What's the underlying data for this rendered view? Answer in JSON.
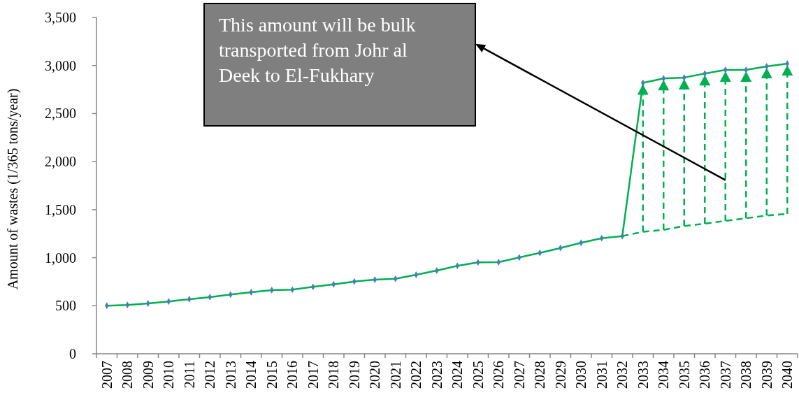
{
  "chart_data": {
    "type": "line",
    "ylabel": "Amount of wastes (1/365 tons/year)",
    "categories": [
      "2007",
      "2008",
      "2009",
      "2010",
      "2011",
      "2012",
      "2013",
      "2014",
      "2015",
      "2016",
      "2017",
      "2018",
      "2019",
      "2020",
      "2021",
      "2022",
      "2023",
      "2024",
      "2025",
      "2026",
      "2027",
      "2028",
      "2029",
      "2030",
      "2031",
      "2032",
      "2033",
      "2034",
      "2035",
      "2036",
      "2037",
      "2038",
      "2039",
      "2040"
    ],
    "series": [
      {
        "color": "#00b050",
        "values": [
          500,
          508,
          524,
          544,
          568,
          590,
          616,
          640,
          662,
          667,
          696,
          723,
          752,
          771,
          781,
          822,
          866,
          915,
          951,
          953,
          1002,
          1050,
          1101,
          1155,
          1203,
          1225,
          2819,
          2865,
          2875,
          2916,
          2955,
          2955,
          2991,
          3020
        ]
      },
      {
        "color": "#00b050",
        "line_style": "dashed",
        "marker": "none",
        "values": [
          null,
          null,
          null,
          null,
          null,
          null,
          null,
          null,
          null,
          null,
          null,
          null,
          null,
          null,
          null,
          null,
          null,
          null,
          null,
          null,
          null,
          null,
          null,
          null,
          null,
          1225,
          1269,
          1290,
          1330,
          1354,
          1383,
          1410,
          1439,
          1456
        ]
      }
    ],
    "ylim": [
      0,
      3500
    ],
    "yticks": [
      0,
      500,
      {
        "value": 1000,
        "label": "1,000"
      },
      {
        "value": 1500,
        "label": "1,500"
      },
      {
        "value": 2000,
        "label": "2,000"
      },
      {
        "value": 2500,
        "label": "2,500"
      },
      {
        "value": 3000,
        "label": "3,000"
      },
      {
        "value": 3500,
        "label": "3,500"
      }
    ],
    "marker": "diamond",
    "annotations": [
      "This amount will be bulk transported from Johr al Deek to El-Fukhary"
    ]
  }
}
